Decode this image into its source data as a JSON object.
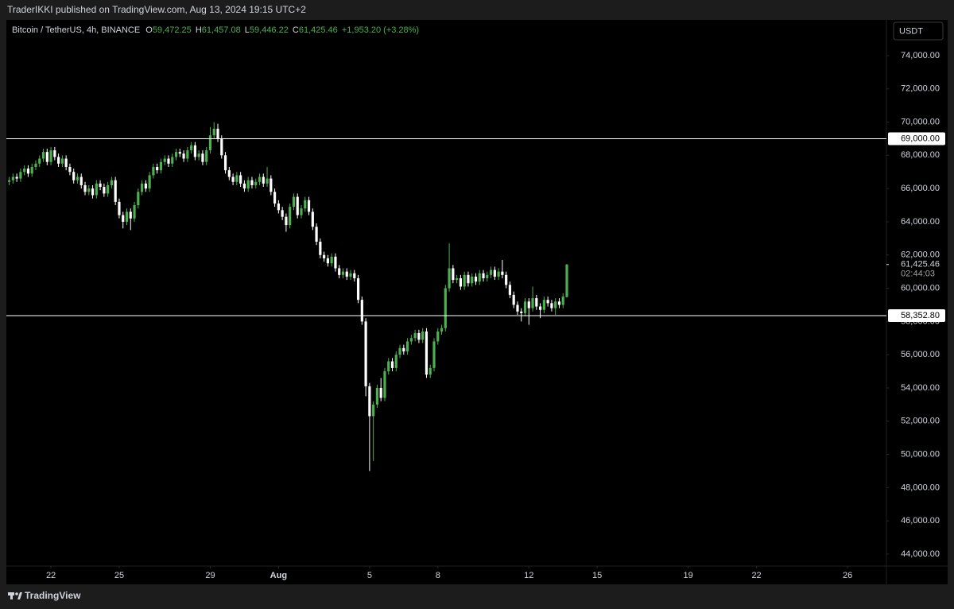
{
  "header": {
    "publisher": "TraderIKKI published on TradingView.com, Aug 13, 2024 19:15 UTC+2"
  },
  "footer": {
    "logo": "TradingView"
  },
  "chart_data": {
    "type": "candlestick",
    "symbol": "Bitcoin / TetherUS, 4h, BINANCE",
    "ohlc_legend": {
      "o_key": "O",
      "o": "59,472.25",
      "h_key": "H",
      "h": "61,457.08",
      "l_key": "L",
      "l": "59,446.22",
      "c_key": "C",
      "c": "61,425.46",
      "change": "+1,953.20 (+3.28%)"
    },
    "currency": "USDT",
    "up_color": "#4caf50",
    "down_color": "#ffffff",
    "grid": false,
    "xlim": [
      457,
      1385
    ],
    "xticks": [
      {
        "value": 504,
        "label": "22"
      },
      {
        "value": 576,
        "label": "25"
      },
      {
        "value": 672,
        "label": "29"
      },
      {
        "value": 744,
        "label": "Aug"
      },
      {
        "value": 840,
        "label": "5"
      },
      {
        "value": 912,
        "label": "8"
      },
      {
        "value": 1008,
        "label": "12"
      },
      {
        "value": 1080,
        "label": "15"
      },
      {
        "value": 1176,
        "label": "19"
      },
      {
        "value": 1248,
        "label": "22"
      },
      {
        "value": 1344,
        "label": "26"
      }
    ],
    "ylim": [
      43280,
      76150
    ],
    "yticks": [
      {
        "value": 44000,
        "label": "44,000.00"
      },
      {
        "value": 46000,
        "label": "46,000.00"
      },
      {
        "value": 48000,
        "label": "48,000.00"
      },
      {
        "value": 50000,
        "label": "50,000.00"
      },
      {
        "value": 52000,
        "label": "52,000.00"
      },
      {
        "value": 54000,
        "label": "54,000.00"
      },
      {
        "value": 56000,
        "label": "56,000.00"
      },
      {
        "value": 58000,
        "label": "58,000.00"
      },
      {
        "value": 60000,
        "label": "60,000.00"
      },
      {
        "value": 62000,
        "label": "62,000.00"
      },
      {
        "value": 64000,
        "label": "64,000.00"
      },
      {
        "value": 66000,
        "label": "66,000.00"
      },
      {
        "value": 68000,
        "label": "68,000.00"
      },
      {
        "value": 70000,
        "label": "70,000.00"
      },
      {
        "value": 72000,
        "label": "72,000.00"
      },
      {
        "value": 74000,
        "label": "74,000.00"
      }
    ],
    "hlines": [
      {
        "value": 69000,
        "label": "69,000.00"
      },
      {
        "value": 58352.8,
        "label": "58,352.80"
      }
    ],
    "hline_color": "#ffffff",
    "last_price": {
      "value": 61425.46,
      "label": "61,425.46"
    },
    "countdown": "02:44:03",
    "x": [
      460,
      464,
      468,
      472,
      476,
      480,
      484,
      488,
      492,
      496,
      500,
      504,
      508,
      512,
      516,
      520,
      524,
      528,
      532,
      536,
      540,
      544,
      548,
      552,
      556,
      560,
      564,
      568,
      572,
      576,
      580,
      584,
      588,
      592,
      596,
      600,
      604,
      608,
      612,
      616,
      620,
      624,
      628,
      632,
      636,
      640,
      644,
      648,
      652,
      656,
      660,
      664,
      668,
      672,
      676,
      680,
      684,
      688,
      692,
      696,
      700,
      704,
      708,
      712,
      716,
      720,
      724,
      728,
      732,
      736,
      740,
      744,
      748,
      752,
      756,
      760,
      764,
      768,
      772,
      776,
      780,
      784,
      788,
      792,
      796,
      800,
      804,
      808,
      812,
      816,
      820,
      824,
      828,
      832,
      836,
      840,
      844,
      848,
      852,
      856,
      860,
      864,
      868,
      872,
      876,
      880,
      884,
      888,
      892,
      896,
      900,
      904,
      908,
      912,
      916,
      920,
      924,
      928,
      932,
      936,
      940,
      944,
      948,
      952,
      956,
      960,
      964,
      968,
      972,
      976,
      980,
      984,
      988,
      992,
      996,
      1000,
      1004,
      1008,
      1012,
      1016,
      1020,
      1024,
      1028,
      1032,
      1036,
      1040,
      1044,
      1048
    ],
    "open": [
      66400,
      66500,
      66700,
      66600,
      67000,
      67200,
      66900,
      67300,
      67500,
      67800,
      68200,
      67600,
      68300,
      67900,
      67500,
      67800,
      67300,
      67000,
      66500,
      66700,
      66200,
      65800,
      66000,
      65600,
      66300,
      66100,
      65700,
      66200,
      66500,
      65200,
      64400,
      64000,
      64600,
      64200,
      65000,
      65800,
      66300,
      66000,
      66800,
      67300,
      67100,
      67600,
      67800,
      67500,
      67900,
      68200,
      68100,
      67800,
      68300,
      68600,
      67900,
      68100,
      67600,
      68300,
      69200,
      69600,
      69000,
      68000,
      67100,
      66700,
      66400,
      66800,
      66300,
      66000,
      66500,
      66200,
      66400,
      66700,
      66300,
      66600,
      65800,
      65100,
      64700,
      64300,
      63800,
      64900,
      65500,
      64400,
      64800,
      65300,
      64600,
      63700,
      62800,
      62000,
      61800,
      61500,
      61900,
      61200,
      60800,
      61000,
      60700,
      60900,
      60600,
      59300,
      58000,
      54100,
      52300,
      53000,
      54000,
      53400,
      55000,
      55600,
      55200,
      56000,
      56400,
      56200,
      56800,
      57000,
      57300,
      56900,
      57400,
      54800,
      55200,
      56800,
      57400,
      57600,
      60000,
      61200,
      60500,
      60600,
      60100,
      60800,
      60300,
      60700,
      60400,
      60900,
      60600,
      60800,
      61100,
      60700,
      61000,
      60800,
      60200,
      59600,
      59000,
      58600,
      58500,
      59200,
      58800,
      59400,
      58900,
      58700,
      59300,
      59100,
      58800,
      59200,
      59000,
      59472.25
    ],
    "high": [
      66700,
      66900,
      66900,
      67200,
      67400,
      67400,
      67500,
      67700,
      68000,
      68400,
      68400,
      68500,
      68500,
      68100,
      68000,
      68000,
      67500,
      67200,
      66900,
      66900,
      66400,
      66200,
      66200,
      66500,
      66500,
      66300,
      66400,
      66700,
      66700,
      65400,
      64600,
      64800,
      64800,
      65200,
      66000,
      66500,
      66500,
      67000,
      67500,
      67500,
      67800,
      68000,
      68000,
      68100,
      68400,
      68400,
      68300,
      68500,
      68800,
      68800,
      68300,
      68300,
      68500,
      69700,
      70000,
      69900,
      69200,
      68200,
      67300,
      66900,
      67000,
      67000,
      66500,
      66700,
      66700,
      66600,
      66900,
      66900,
      67300,
      66800,
      66000,
      65300,
      64900,
      64500,
      65100,
      65700,
      65700,
      65000,
      65500,
      65500,
      64800,
      63900,
      63000,
      62200,
      62000,
      62100,
      62100,
      61400,
      61200,
      61200,
      61100,
      61100,
      60800,
      59500,
      58200,
      54300,
      53200,
      54200,
      54600,
      55200,
      55800,
      55800,
      56200,
      56600,
      56600,
      57000,
      57200,
      57500,
      57500,
      57600,
      57600,
      55400,
      57000,
      57600,
      57800,
      60200,
      62700,
      61400,
      60800,
      60800,
      61000,
      61000,
      60900,
      60900,
      61100,
      61100,
      61000,
      61300,
      61300,
      61200,
      61700,
      61000,
      60400,
      59800,
      59200,
      58800,
      59400,
      59400,
      60100,
      59600,
      59100,
      59500,
      59500,
      59300,
      59400,
      59400,
      59700,
      61457.08
    ],
    "low": [
      66200,
      66300,
      66400,
      66400,
      66800,
      66700,
      66700,
      67100,
      67300,
      67600,
      67400,
      67400,
      67700,
      67300,
      67300,
      67100,
      66800,
      66300,
      66300,
      66000,
      65600,
      65600,
      65400,
      65400,
      65900,
      65500,
      65500,
      66000,
      65000,
      64200,
      63600,
      63800,
      63500,
      64000,
      64800,
      65600,
      65800,
      65800,
      66600,
      66900,
      66900,
      67400,
      67300,
      67300,
      67700,
      67900,
      67600,
      67600,
      68100,
      67700,
      67700,
      67400,
      67400,
      68100,
      69000,
      68800,
      67800,
      66900,
      66500,
      66200,
      66200,
      66100,
      65800,
      65800,
      66000,
      66000,
      66200,
      66100,
      66100,
      65600,
      64900,
      64500,
      64100,
      63400,
      63600,
      64700,
      64200,
      64200,
      64600,
      64400,
      63500,
      62600,
      61800,
      61600,
      61300,
      61300,
      61000,
      60600,
      60600,
      60500,
      60500,
      60400,
      59100,
      57800,
      53500,
      49000,
      49600,
      52800,
      53200,
      53200,
      54800,
      55000,
      55000,
      55800,
      56000,
      56000,
      56600,
      56800,
      56700,
      56700,
      54600,
      54600,
      55000,
      56600,
      57200,
      57400,
      59800,
      60300,
      60300,
      59900,
      59900,
      60100,
      60100,
      60200,
      60200,
      60400,
      60400,
      60600,
      60500,
      60500,
      60600,
      60000,
      59400,
      58800,
      58400,
      58000,
      58300,
      57800,
      58600,
      58700,
      58200,
      58500,
      58900,
      58600,
      58400,
      58800,
      58800,
      59446.22
    ],
    "close": [
      66500,
      66700,
      66600,
      67000,
      67200,
      66900,
      67300,
      67500,
      67800,
      68200,
      67600,
      68300,
      67900,
      67500,
      67800,
      67300,
      67000,
      66500,
      66700,
      66200,
      65800,
      66000,
      65600,
      66300,
      66100,
      65700,
      66200,
      66500,
      65200,
      64400,
      64000,
      64600,
      64200,
      65000,
      65800,
      66300,
      66000,
      66800,
      67300,
      67100,
      67600,
      67800,
      67500,
      67900,
      68200,
      68100,
      67800,
      68300,
      68600,
      67900,
      68100,
      67600,
      68300,
      69200,
      69600,
      69000,
      68000,
      67100,
      66700,
      66400,
      66800,
      66300,
      66000,
      66500,
      66200,
      66400,
      66700,
      66300,
      66600,
      65800,
      65100,
      64700,
      64300,
      63800,
      64900,
      65500,
      64400,
      64800,
      65300,
      64600,
      63700,
      62800,
      62000,
      61800,
      61500,
      61900,
      61200,
      60800,
      61000,
      60700,
      60900,
      60600,
      59300,
      58000,
      54100,
      52300,
      53000,
      54000,
      53400,
      55000,
      55600,
      55200,
      56000,
      56400,
      56200,
      56800,
      57000,
      57300,
      56900,
      57400,
      54800,
      55200,
      56800,
      57400,
      57600,
      60000,
      61200,
      60500,
      60600,
      60100,
      60800,
      60300,
      60700,
      60400,
      60900,
      60600,
      60800,
      61100,
      60700,
      61000,
      60800,
      60200,
      59600,
      59000,
      58600,
      58500,
      59200,
      58800,
      59400,
      58900,
      58700,
      59300,
      59100,
      58800,
      59200,
      59000,
      59500,
      61425.46
    ]
  }
}
